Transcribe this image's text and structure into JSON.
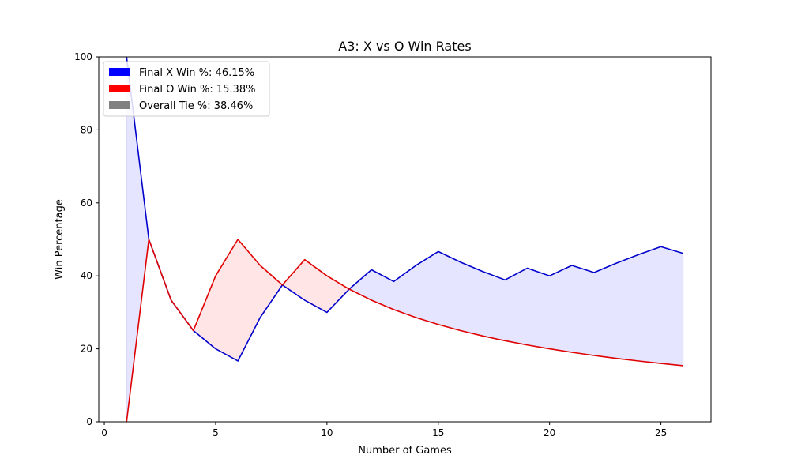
{
  "chart_data": {
    "type": "line",
    "title": "A3: X vs O Win Rates",
    "xlabel": "Number of Games",
    "ylabel": "Win Percentage",
    "xlim": [
      -0.25,
      27.25
    ],
    "ylim": [
      0,
      100
    ],
    "xticks": [
      0,
      5,
      10,
      15,
      20,
      25
    ],
    "yticks": [
      0,
      20,
      40,
      60,
      80,
      100
    ],
    "grid": false,
    "legend_position": "upper-left",
    "x": [
      1,
      2,
      3,
      4,
      5,
      6,
      7,
      8,
      9,
      10,
      11,
      12,
      13,
      14,
      15,
      16,
      17,
      18,
      19,
      20,
      21,
      22,
      23,
      24,
      25,
      26
    ],
    "series": [
      {
        "name": "X",
        "color": "#0000cc",
        "values": [
          100,
          50,
          33.33,
          25,
          20,
          16.67,
          28.57,
          37.5,
          33.33,
          30,
          36.36,
          41.67,
          38.46,
          42.86,
          46.67,
          43.75,
          41.18,
          38.89,
          42.11,
          40,
          42.86,
          40.91,
          43.48,
          45.83,
          48,
          46.15
        ]
      },
      {
        "name": "O",
        "color": "#e00000",
        "values": [
          0,
          50,
          33.33,
          25,
          40,
          50,
          42.86,
          37.5,
          44.44,
          40,
          36.36,
          33.33,
          30.77,
          28.57,
          26.67,
          25,
          23.53,
          22.22,
          21.05,
          20,
          19.05,
          18.18,
          17.39,
          16.67,
          16,
          15.38
        ]
      }
    ],
    "fills": {
      "x_leads_color": "#0000ff",
      "o_leads_color": "#ff0000",
      "opacity": 0.1
    },
    "legend": [
      {
        "label": "Final X Win %: 46.15%",
        "color": "#0000ff"
      },
      {
        "label": "Final O Win %: 15.38%",
        "color": "#ff0000"
      },
      {
        "label": "Overall Tie %: 38.46%",
        "color": "#808080"
      }
    ]
  }
}
